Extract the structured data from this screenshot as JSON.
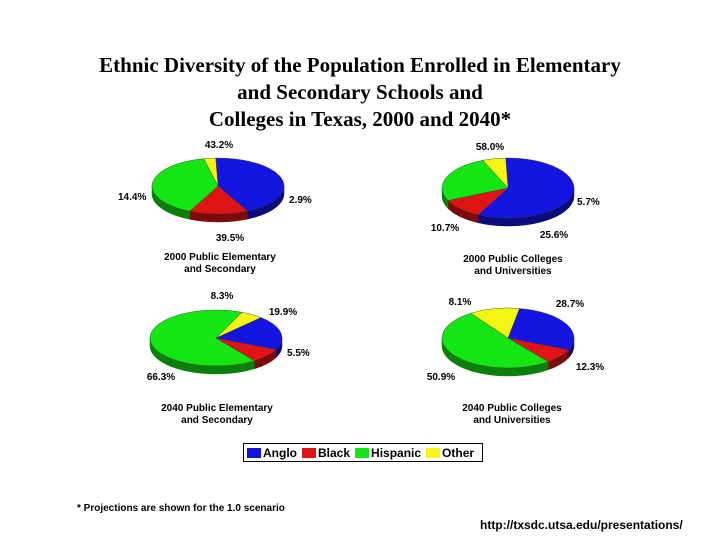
{
  "title_lines": [
    "Ethnic Diversity of the Population Enrolled in Elementary",
    "and Secondary Schools and",
    "Colleges in Texas, 2000 and 2040*"
  ],
  "chart_data": [
    {
      "type": "pie",
      "caption_lines": [
        "2000 Public Elementary",
        "and Secondary"
      ],
      "categories": [
        "Anglo",
        "Black",
        "Hispanic",
        "Other"
      ],
      "values": [
        43.2,
        14.4,
        39.5,
        2.9
      ],
      "labels": [
        "43.2%",
        "14.4%",
        "39.5%",
        "2.9%"
      ]
    },
    {
      "type": "pie",
      "caption_lines": [
        "2000 Public Colleges",
        "and Universities"
      ],
      "categories": [
        "Anglo",
        "Black",
        "Hispanic",
        "Other"
      ],
      "values": [
        58.0,
        10.7,
        25.6,
        5.7
      ],
      "labels": [
        "58.0%",
        "10.7%",
        "25.6%",
        "5.7%"
      ]
    },
    {
      "type": "pie",
      "caption_lines": [
        "2040 Public Elementary",
        "and Secondary"
      ],
      "categories": [
        "Anglo",
        "Black",
        "Hispanic",
        "Other"
      ],
      "values": [
        19.9,
        8.3,
        66.3,
        5.5
      ],
      "labels": [
        "19.9%",
        "8.3%",
        "66.3%",
        "5.5%"
      ]
    },
    {
      "type": "pie",
      "caption_lines": [
        "2040 Public Colleges",
        "and Universities"
      ],
      "categories": [
        "Anglo",
        "Black",
        "Hispanic",
        "Other"
      ],
      "values": [
        28.7,
        8.1,
        50.9,
        12.3
      ],
      "labels": [
        "28.7%",
        "8.1%",
        "50.9%",
        "12.3%"
      ]
    }
  ],
  "legend": [
    {
      "label": "Anglo",
      "color": "#1414e0"
    },
    {
      "label": "Black",
      "color": "#e01414"
    },
    {
      "label": "Hispanic",
      "color": "#14e614"
    },
    {
      "label": "Other",
      "color": "#f5f514"
    }
  ],
  "footnote": "* Projections are shown for the 1.0 scenario",
  "source_url": "http://txsdc.utsa.edu/presentations/"
}
